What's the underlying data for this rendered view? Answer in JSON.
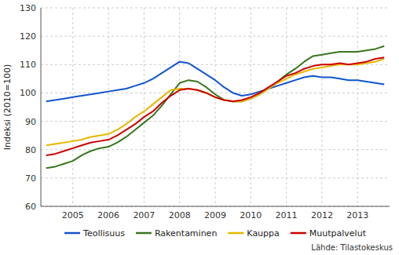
{
  "chart_data": {
    "type": "line",
    "ylabel": "Indeksi (2010=100)",
    "annotations": [
      "Lähde: Tilastokeskus"
    ],
    "x": [
      2004.25,
      2004.5,
      2004.75,
      2005.0,
      2005.25,
      2005.5,
      2005.75,
      2006.0,
      2006.25,
      2006.5,
      2006.75,
      2007.0,
      2007.25,
      2007.5,
      2007.75,
      2008.0,
      2008.25,
      2008.5,
      2008.75,
      2009.0,
      2009.25,
      2009.5,
      2009.75,
      2010.0,
      2010.25,
      2010.5,
      2010.75,
      2011.0,
      2011.25,
      2011.5,
      2011.75,
      2012.0,
      2012.25,
      2012.5,
      2012.75,
      2013.0,
      2013.25,
      2013.5,
      2013.75
    ],
    "series": [
      {
        "name": "Teollisuus",
        "color": "#1155cc",
        "values": [
          97.0,
          97.5,
          98.0,
          98.5,
          99.0,
          99.5,
          100.0,
          100.5,
          101.0,
          101.5,
          102.5,
          103.5,
          105.0,
          107.0,
          109.0,
          111.0,
          110.5,
          108.5,
          106.5,
          104.5,
          102.0,
          100.0,
          99.0,
          99.5,
          100.5,
          101.5,
          102.5,
          103.5,
          104.5,
          105.5,
          106.0,
          105.5,
          105.5,
          105.0,
          104.5,
          104.5,
          104.0,
          103.5,
          103.0
        ]
      },
      {
        "name": "Rakentaminen",
        "color": "#38761d",
        "values": [
          73.5,
          74.0,
          75.0,
          76.0,
          78.0,
          79.5,
          80.5,
          81.0,
          82.5,
          84.5,
          87.0,
          89.5,
          92.0,
          95.5,
          99.5,
          103.5,
          104.5,
          104.0,
          102.0,
          99.5,
          97.5,
          97.0,
          97.0,
          98.0,
          99.5,
          101.5,
          104.0,
          106.5,
          108.5,
          111.0,
          113.0,
          113.5,
          114.0,
          114.5,
          114.5,
          114.5,
          115.0,
          115.5,
          116.5
        ]
      },
      {
        "name": "Kauppa",
        "color": "#e6b800",
        "values": [
          81.5,
          82.0,
          82.5,
          83.0,
          83.5,
          84.5,
          85.0,
          85.5,
          87.0,
          89.0,
          91.5,
          93.5,
          96.0,
          98.5,
          101.0,
          101.5,
          101.5,
          101.0,
          100.0,
          98.5,
          97.5,
          97.0,
          97.0,
          98.0,
          99.5,
          101.5,
          103.5,
          105.0,
          106.5,
          107.5,
          108.5,
          109.0,
          109.5,
          110.0,
          110.0,
          110.0,
          110.5,
          111.0,
          112.0
        ]
      },
      {
        "name": "Muutpalvelut",
        "color": "#cc0000",
        "values": [
          78.0,
          78.5,
          79.5,
          80.5,
          81.5,
          82.5,
          83.0,
          83.5,
          85.0,
          87.0,
          89.0,
          91.5,
          93.5,
          96.5,
          99.0,
          101.0,
          101.5,
          101.0,
          100.0,
          98.5,
          97.5,
          97.0,
          97.5,
          98.5,
          100.0,
          102.0,
          104.0,
          106.0,
          107.0,
          108.5,
          109.5,
          110.0,
          110.0,
          110.5,
          110.0,
          110.5,
          111.0,
          112.0,
          112.5
        ]
      }
    ],
    "xlim": [
      2004.1,
      2013.9
    ],
    "xticks": [
      2005,
      2006,
      2007,
      2008,
      2009,
      2010,
      2011,
      2012,
      2013
    ],
    "ylim": [
      60,
      130
    ],
    "yticks": [
      60,
      70,
      80,
      90,
      100,
      110,
      120,
      130
    ],
    "grid": true,
    "legend": "bottom"
  }
}
